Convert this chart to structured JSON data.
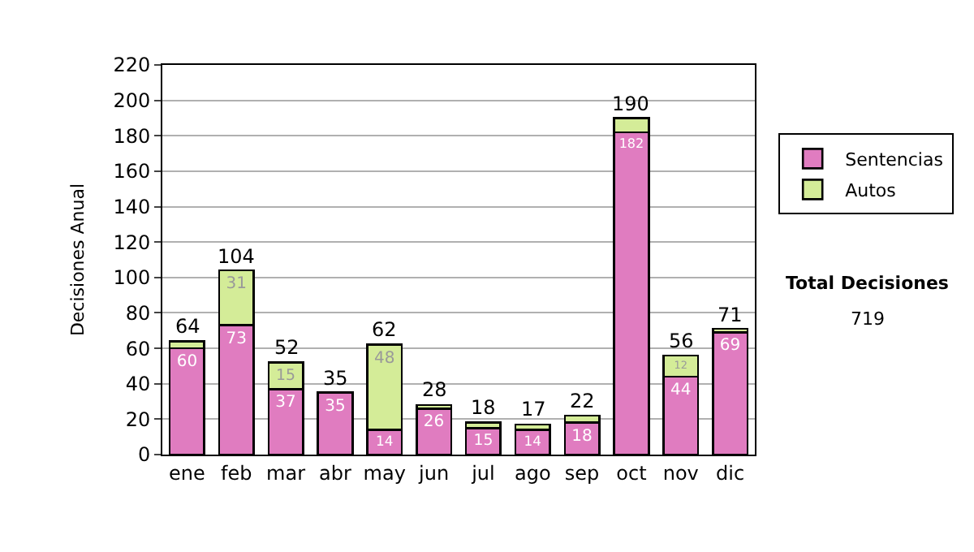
{
  "chart_data": {
    "type": "bar",
    "stacked": true,
    "ylabel": "Decisiones Anual",
    "categories": [
      "ene",
      "feb",
      "mar",
      "abr",
      "may",
      "jun",
      "jul",
      "ago",
      "sep",
      "oct",
      "nov",
      "dic"
    ],
    "series": [
      {
        "name": "Sentencias",
        "color": "#e07cc0",
        "values": [
          60,
          73,
          37,
          35,
          14,
          26,
          15,
          14,
          18,
          182,
          44,
          69
        ],
        "value_labels": [
          "60",
          "73",
          "37",
          "35",
          "14",
          "26",
          "15",
          "14",
          "18",
          "182",
          "44",
          "69"
        ]
      },
      {
        "name": "Autos",
        "color": "#d4ec98",
        "values": [
          4,
          31,
          15,
          null,
          48,
          2,
          3,
          3,
          4,
          8,
          12,
          2
        ],
        "value_labels": [
          null,
          "31",
          "15",
          null,
          "48",
          null,
          null,
          null,
          null,
          null,
          "12",
          null
        ]
      }
    ],
    "totals": [
      "64",
      "104",
      "52",
      "35",
      "62",
      "28",
      "18",
      "17",
      "22",
      "190",
      "56",
      "71"
    ],
    "ylim": [
      0,
      220
    ],
    "yticks": [
      0,
      20,
      40,
      60,
      80,
      100,
      120,
      140,
      160,
      180,
      200,
      220
    ],
    "grid": "y",
    "legend": "right",
    "annotations": [
      "Total Decisiones",
      "719"
    ]
  }
}
